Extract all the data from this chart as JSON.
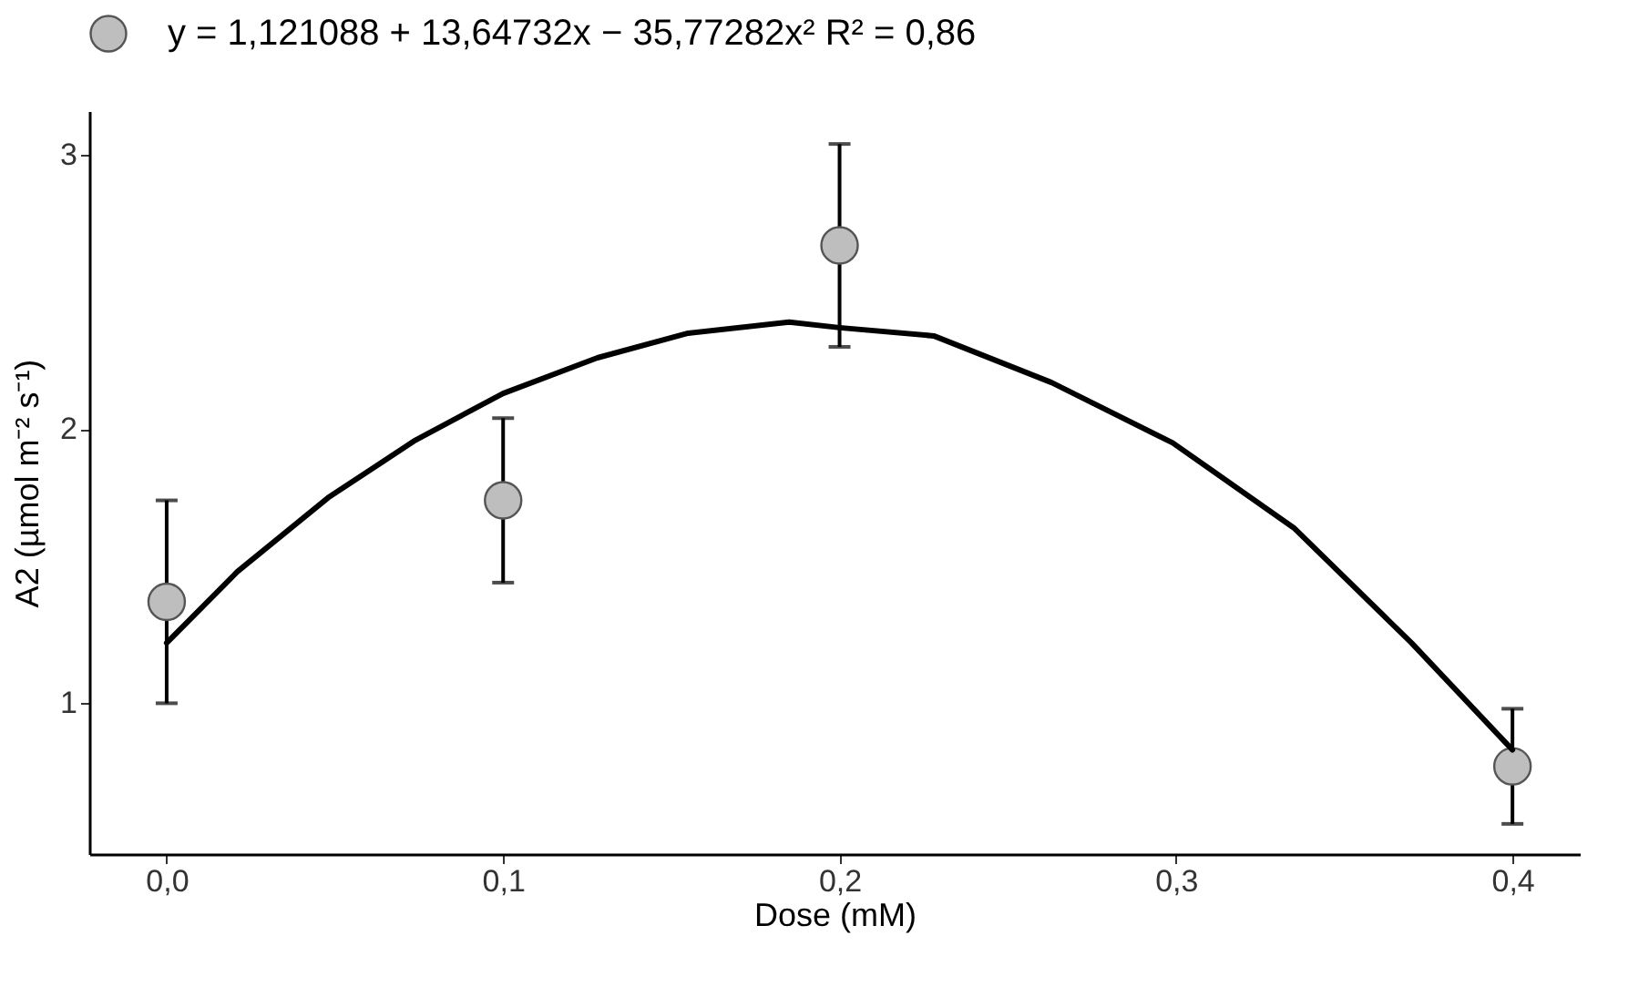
{
  "chart_data": {
    "type": "scatter",
    "xlabel": "Dose (mM)",
    "ylabel": "A2 (µmol m⁻² s⁻¹)",
    "xlim": [
      -0.023,
      0.42
    ],
    "ylim": [
      0.45,
      3.16
    ],
    "xticks": [
      {
        "value": 0,
        "label": "0,0"
      },
      {
        "value": 0.1,
        "label": "0,1"
      },
      {
        "value": 0.2,
        "label": "0,2"
      },
      {
        "value": 0.3,
        "label": "0,3"
      },
      {
        "value": 0.4,
        "label": "0,4"
      }
    ],
    "yticks": [
      1,
      2,
      3
    ],
    "legend": "top",
    "series": [
      {
        "name": "y = 1,121088 + 13,64732x − 35,77282x²    R² = 0,86",
        "type": "scatter",
        "marker": "circle",
        "color": "#bebebe",
        "x": [
          0,
          0.1,
          0.2,
          0.4
        ],
        "values": [
          1.37,
          1.74,
          2.67,
          0.77
        ],
        "errors": [
          0.37,
          0.3,
          0.37,
          0.21
        ]
      },
      {
        "type": "line",
        "marker": "none",
        "line_style": "solid",
        "color": "#000000",
        "x": [
          0,
          0.021,
          0.048,
          0.074,
          0.1,
          0.128,
          0.155,
          0.185,
          0.2,
          0.228,
          0.263,
          0.299,
          0.335,
          0.37,
          0.4
        ],
        "values": [
          1.22,
          1.48,
          1.75,
          1.96,
          2.13,
          2.26,
          2.35,
          2.39,
          2.37,
          2.34,
          2.17,
          1.95,
          1.64,
          1.22,
          0.83
        ]
      }
    ]
  }
}
